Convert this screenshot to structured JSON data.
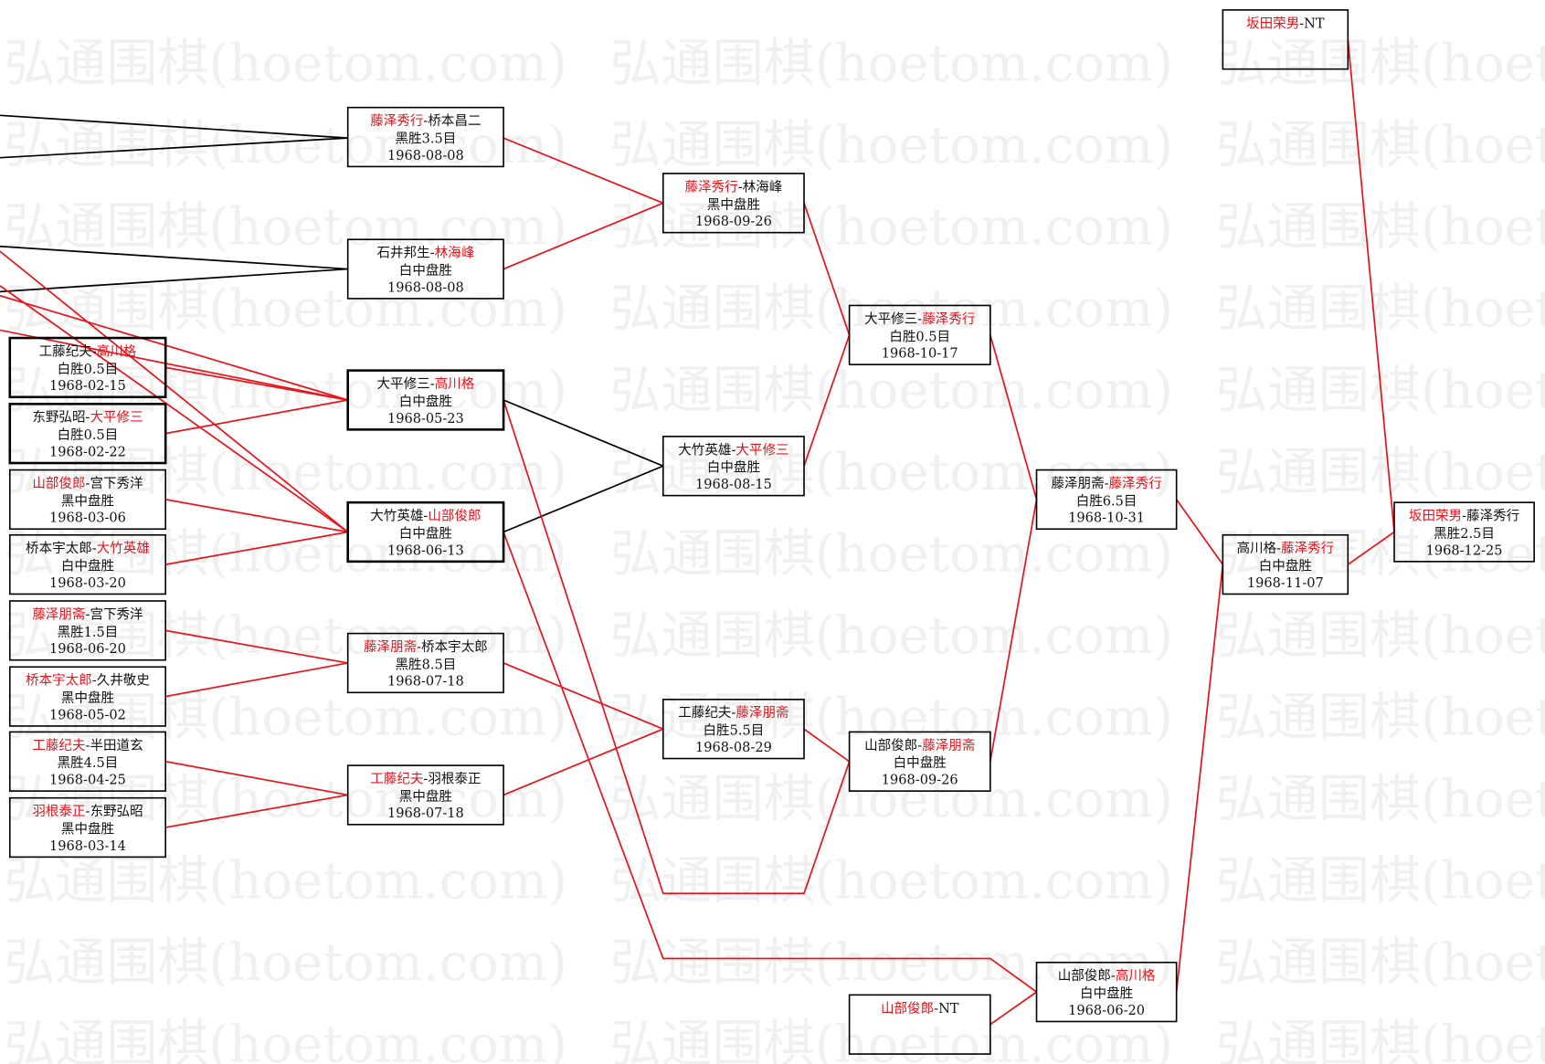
{
  "watermark": "弘通围棋(hoetom.com)",
  "colors": {
    "winner": "#e8141c",
    "line_win": "#e8141c",
    "line_other": "#000000",
    "box_border": "#000000"
  },
  "games": [
    {
      "id": "A1",
      "players": [
        "工藤纪夫",
        "高川格"
      ],
      "winner": 1,
      "result": "白胜0.5目",
      "date": "1968-02-15"
    },
    {
      "id": "A2",
      "players": [
        "东野弘昭",
        "大平修三"
      ],
      "winner": 1,
      "result": "白胜0.5目",
      "date": "1968-02-22"
    },
    {
      "id": "A3",
      "players": [
        "山部俊郎",
        "宫下秀洋"
      ],
      "winner": 0,
      "result": "黑中盘胜",
      "date": "1968-03-06"
    },
    {
      "id": "A4",
      "players": [
        "桥本宇太郎",
        "大竹英雄"
      ],
      "winner": 1,
      "result": "白中盘胜",
      "date": "1968-03-20"
    },
    {
      "id": "A5",
      "players": [
        "藤泽朋斋",
        "宫下秀洋"
      ],
      "winner": 0,
      "result": "黑胜1.5目",
      "date": "1968-06-20"
    },
    {
      "id": "A6",
      "players": [
        "桥本宇太郎",
        "久井敬史"
      ],
      "winner": 0,
      "result": "黑中盘胜",
      "date": "1968-05-02"
    },
    {
      "id": "A7",
      "players": [
        "工藤纪夫",
        "半田道玄"
      ],
      "winner": 0,
      "result": "黑胜4.5目",
      "date": "1968-04-25"
    },
    {
      "id": "A8",
      "players": [
        "羽根泰正",
        "东野弘昭"
      ],
      "winner": 0,
      "result": "黑中盘胜",
      "date": "1968-03-14"
    },
    {
      "id": "B1",
      "players": [
        "藤泽秀行",
        "桥本昌二"
      ],
      "winner": 0,
      "result": "黑胜3.5目",
      "date": "1968-08-08"
    },
    {
      "id": "B2",
      "players": [
        "石井邦生",
        "林海峰"
      ],
      "winner": 1,
      "result": "白中盘胜",
      "date": "1968-08-08"
    },
    {
      "id": "B3",
      "players": [
        "大平修三",
        "高川格"
      ],
      "winner": 1,
      "result": "白中盘胜",
      "date": "1968-05-23"
    },
    {
      "id": "B4",
      "players": [
        "大竹英雄",
        "山部俊郎"
      ],
      "winner": 1,
      "result": "白中盘胜",
      "date": "1968-06-13"
    },
    {
      "id": "B5",
      "players": [
        "藤泽朋斋",
        "桥本宇太郎"
      ],
      "winner": 0,
      "result": "黑胜8.5目",
      "date": "1968-07-18"
    },
    {
      "id": "B6",
      "players": [
        "工藤纪夫",
        "羽根泰正"
      ],
      "winner": 0,
      "result": "黑中盘胜",
      "date": "1968-07-18"
    },
    {
      "id": "C1",
      "players": [
        "藤泽秀行",
        "林海峰"
      ],
      "winner": 0,
      "result": "黑中盘胜",
      "date": "1968-09-26"
    },
    {
      "id": "C2",
      "players": [
        "大竹英雄",
        "大平修三"
      ],
      "winner": 1,
      "result": "白中盘胜",
      "date": "1968-08-15"
    },
    {
      "id": "C3",
      "players": [
        "工藤纪夫",
        "藤泽朋斋"
      ],
      "winner": 1,
      "result": "白胜5.5目",
      "date": "1968-08-29"
    },
    {
      "id": "D1",
      "players": [
        "大平修三",
        "藤泽秀行"
      ],
      "winner": 1,
      "result": "白胜0.5目",
      "date": "1968-10-17"
    },
    {
      "id": "D2",
      "players": [
        "山部俊郎",
        "藤泽朋斋"
      ],
      "winner": 1,
      "result": "白中盘胜",
      "date": "1968-09-26"
    },
    {
      "id": "D3",
      "players": [
        "山部俊郎",
        "NT"
      ],
      "winner": 0,
      "result": "",
      "date": ""
    },
    {
      "id": "E1",
      "players": [
        "藤泽朋斋",
        "藤泽秀行"
      ],
      "winner": 1,
      "result": "白胜6.5目",
      "date": "1968-10-31"
    },
    {
      "id": "E2",
      "players": [
        "山部俊郎",
        "高川格"
      ],
      "winner": 1,
      "result": "白中盘胜",
      "date": "1968-06-20"
    },
    {
      "id": "F1",
      "players": [
        "坂田荣男",
        "NT"
      ],
      "winner": 0,
      "result": "",
      "date": ""
    },
    {
      "id": "F2",
      "players": [
        "高川格",
        "藤泽秀行"
      ],
      "winner": 1,
      "result": "白中盘胜",
      "date": "1968-11-07"
    },
    {
      "id": "G1",
      "players": [
        "坂田荣男",
        "藤泽秀行"
      ],
      "winner": 0,
      "result": "黑胜2.5目",
      "date": "1968-12-25"
    }
  ]
}
